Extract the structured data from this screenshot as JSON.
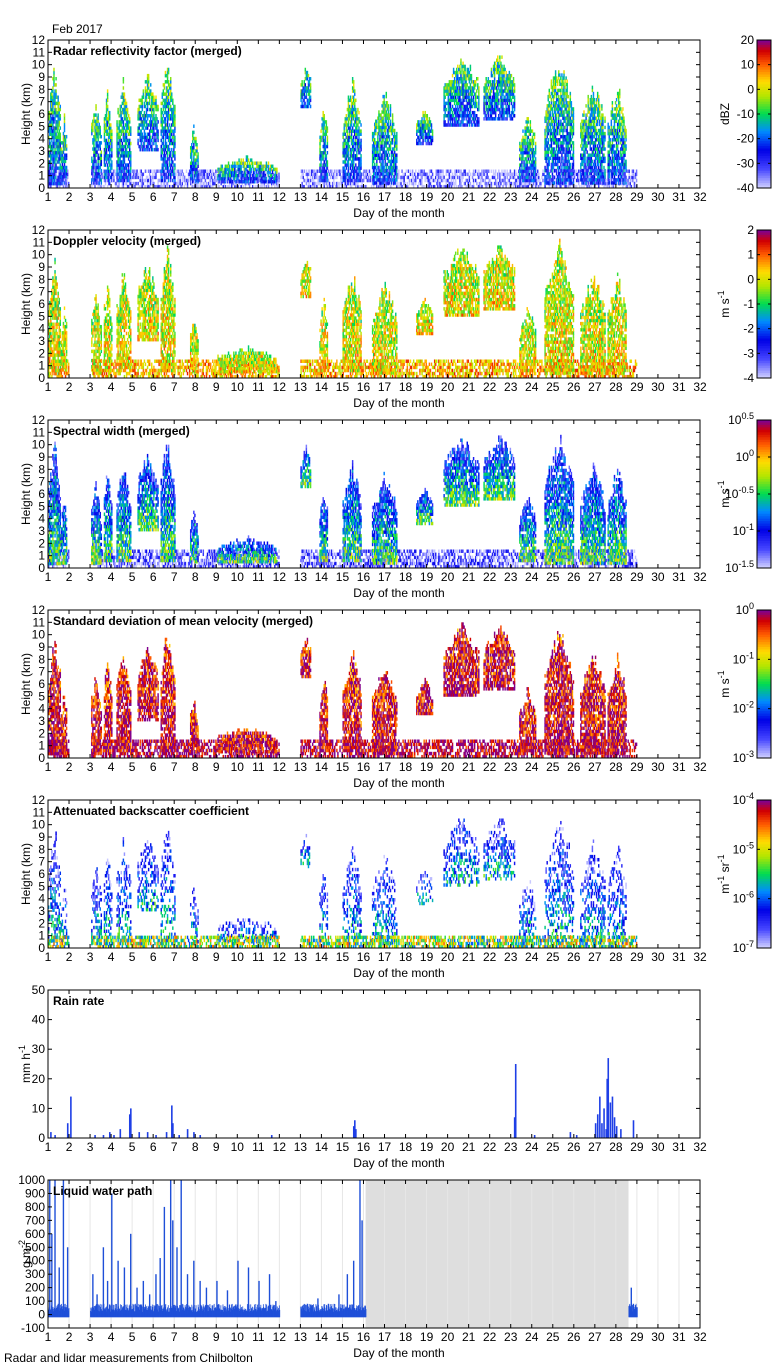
{
  "header": {
    "month_label": "Feb 2017"
  },
  "footer": {
    "source_label": "Radar and lidar measurements from Chilbolton"
  },
  "chart_data": [
    {
      "type": "heatmap",
      "title": "Radar reflectivity factor (merged)",
      "xlabel": "Day of the month",
      "ylabel": "Height (km)",
      "xlim": [
        1,
        32
      ],
      "ylim": [
        0,
        12
      ],
      "xticks": [
        1,
        2,
        3,
        4,
        5,
        6,
        7,
        8,
        9,
        10,
        11,
        12,
        13,
        14,
        15,
        16,
        17,
        18,
        19,
        20,
        21,
        22,
        23,
        24,
        25,
        26,
        27,
        28,
        29,
        30,
        31,
        32
      ],
      "yticks": [
        0,
        1,
        2,
        3,
        4,
        5,
        6,
        7,
        8,
        9,
        10,
        11,
        12
      ],
      "colorbar": {
        "label": "dBZ",
        "ticks": [
          "20",
          "10",
          "0",
          "-10",
          "-20",
          "-30",
          "-40"
        ],
        "range": [
          -40,
          20
        ],
        "scale": "linear"
      },
      "data_gaps": [
        [
          2.0,
          3.0
        ],
        [
          12.0,
          13.0
        ],
        [
          29.0,
          32.0
        ]
      ]
    },
    {
      "type": "heatmap",
      "title": "Doppler velocity (merged)",
      "xlabel": "Day of the month",
      "ylabel": "Height (km)",
      "xlim": [
        1,
        32
      ],
      "ylim": [
        0,
        12
      ],
      "xticks": [
        1,
        2,
        3,
        4,
        5,
        6,
        7,
        8,
        9,
        10,
        11,
        12,
        13,
        14,
        15,
        16,
        17,
        18,
        19,
        20,
        21,
        22,
        23,
        24,
        25,
        26,
        27,
        28,
        29,
        30,
        31,
        32
      ],
      "yticks": [
        0,
        1,
        2,
        3,
        4,
        5,
        6,
        7,
        8,
        9,
        10,
        11,
        12
      ],
      "colorbar": {
        "label_main": "m s",
        "label_sup": "-1",
        "ticks": [
          "2",
          "1",
          "0",
          "-1",
          "-2",
          "-3",
          "-4"
        ],
        "range": [
          -4,
          2
        ],
        "scale": "linear"
      },
      "data_gaps": [
        [
          2.0,
          3.0
        ],
        [
          12.0,
          13.0
        ],
        [
          29.0,
          32.0
        ]
      ]
    },
    {
      "type": "heatmap",
      "title": "Spectral width (merged)",
      "xlabel": "Day of the month",
      "ylabel": "Height (km)",
      "xlim": [
        1,
        32
      ],
      "ylim": [
        0,
        12
      ],
      "xticks": [
        1,
        2,
        3,
        4,
        5,
        6,
        7,
        8,
        9,
        10,
        11,
        12,
        13,
        14,
        15,
        16,
        17,
        18,
        19,
        20,
        21,
        22,
        23,
        24,
        25,
        26,
        27,
        28,
        29,
        30,
        31,
        32
      ],
      "yticks": [
        0,
        1,
        2,
        3,
        4,
        5,
        6,
        7,
        8,
        9,
        10,
        11,
        12
      ],
      "colorbar": {
        "label_main": "m s",
        "label_sup": "-1",
        "ticks": [
          "10^0.5",
          "10^0",
          "10^-0.5",
          "10^-1",
          "10^-1.5"
        ],
        "range": [
          -1.5,
          0.5
        ],
        "scale": "log"
      },
      "data_gaps": [
        [
          2.0,
          3.0
        ],
        [
          12.0,
          13.0
        ],
        [
          29.0,
          32.0
        ]
      ]
    },
    {
      "type": "heatmap",
      "title": "Standard deviation of mean velocity (merged)",
      "xlabel": "Day of the month",
      "ylabel": "Height (km)",
      "xlim": [
        1,
        32
      ],
      "ylim": [
        0,
        12
      ],
      "xticks": [
        1,
        2,
        3,
        4,
        5,
        6,
        7,
        8,
        9,
        10,
        11,
        12,
        13,
        14,
        15,
        16,
        17,
        18,
        19,
        20,
        21,
        22,
        23,
        24,
        25,
        26,
        27,
        28,
        29,
        30,
        31,
        32
      ],
      "yticks": [
        0,
        1,
        2,
        3,
        4,
        5,
        6,
        7,
        8,
        9,
        10,
        11,
        12
      ],
      "colorbar": {
        "label_main": "m s",
        "label_sup": "-1",
        "ticks": [
          "10^0",
          "10^-1",
          "10^-2",
          "10^-3"
        ],
        "range": [
          -3,
          0
        ],
        "scale": "log"
      },
      "data_gaps": [
        [
          2.0,
          3.0
        ],
        [
          12.0,
          13.0
        ],
        [
          29.0,
          32.0
        ]
      ]
    },
    {
      "type": "heatmap",
      "title": "Attenuated backscatter coefficient",
      "xlabel": "Day of the month",
      "ylabel": "Height (km)",
      "xlim": [
        1,
        32
      ],
      "ylim": [
        0,
        12
      ],
      "xticks": [
        1,
        2,
        3,
        4,
        5,
        6,
        7,
        8,
        9,
        10,
        11,
        12,
        13,
        14,
        15,
        16,
        17,
        18,
        19,
        20,
        21,
        22,
        23,
        24,
        25,
        26,
        27,
        28,
        29,
        30,
        31,
        32
      ],
      "yticks": [
        0,
        1,
        2,
        3,
        4,
        5,
        6,
        7,
        8,
        9,
        10,
        11,
        12
      ],
      "colorbar": {
        "label_main": "m",
        "label_sup": "-1",
        "label_main2": " sr",
        "label_sup2": "-1",
        "ticks": [
          "10^-4",
          "10^-5",
          "10^-6",
          "10^-7"
        ],
        "range": [
          -7,
          -4
        ],
        "scale": "log"
      },
      "data_gaps": [
        [
          2.0,
          3.0
        ],
        [
          12.0,
          13.0
        ],
        [
          29.0,
          32.0
        ]
      ]
    },
    {
      "type": "bar",
      "title": "Rain rate",
      "xlabel": "Day of the month",
      "ylabel_main": "mm h",
      "ylabel_sup": "-1",
      "xlim": [
        1,
        32
      ],
      "ylim": [
        0,
        50
      ],
      "xticks": [
        1,
        2,
        3,
        4,
        5,
        6,
        7,
        8,
        9,
        10,
        11,
        12,
        13,
        14,
        15,
        16,
        17,
        18,
        19,
        20,
        21,
        22,
        23,
        24,
        25,
        26,
        27,
        28,
        29,
        30,
        31,
        32
      ],
      "yticks": [
        0,
        10,
        20,
        30,
        40,
        50
      ],
      "x": [
        1.1,
        1.3,
        1.9,
        2.05,
        3.2,
        3.6,
        3.9,
        4.1,
        4.4,
        4.85,
        4.9,
        5.3,
        5.7,
        6.1,
        6.6,
        6.85,
        6.9,
        7.2,
        7.6,
        7.9,
        8.2,
        11.6,
        15.5,
        15.55,
        15.6,
        23.15,
        23.2,
        24.1,
        25.8,
        26.1,
        27.0,
        27.1,
        27.2,
        27.3,
        27.4,
        27.5,
        27.55,
        27.6,
        27.7,
        27.8,
        27.9,
        28.0,
        28.2,
        28.8
      ],
      "values": [
        2,
        1,
        5,
        14,
        1,
        1,
        2,
        1,
        3,
        8,
        10,
        2,
        2,
        1,
        2,
        11,
        5,
        1,
        3,
        2,
        1,
        1,
        4,
        6,
        3,
        7,
        25,
        1,
        2,
        1,
        5,
        8,
        14,
        5,
        10,
        3,
        20,
        27,
        12,
        14,
        7,
        4,
        3,
        6
      ]
    },
    {
      "type": "bar",
      "title": "Liquid water path",
      "xlabel": "Day of the month",
      "ylabel_main": "g m",
      "ylabel_sup": "-2",
      "xlim": [
        1,
        32
      ],
      "ylim": [
        -100,
        1000
      ],
      "xticks": [
        1,
        2,
        3,
        4,
        5,
        6,
        7,
        8,
        9,
        10,
        11,
        12,
        13,
        14,
        15,
        16,
        17,
        18,
        19,
        20,
        21,
        22,
        23,
        24,
        25,
        26,
        27,
        28,
        29,
        30,
        31,
        32
      ],
      "yticks": [
        -100,
        0,
        100,
        200,
        300,
        400,
        500,
        600,
        700,
        800,
        900,
        1000
      ],
      "segments": [
        [
          1.0,
          2.0
        ],
        [
          3.0,
          12.0
        ],
        [
          13.0,
          16.1
        ],
        [
          28.6,
          29.0
        ]
      ],
      "no_data_region": [
        16.1,
        28.6
      ],
      "x": [
        1.05,
        1.15,
        1.3,
        1.5,
        1.7,
        1.9,
        3.1,
        3.3,
        3.6,
        3.8,
        4.0,
        4.3,
        4.6,
        4.9,
        5.2,
        5.5,
        5.8,
        6.1,
        6.3,
        6.5,
        6.8,
        6.9,
        7.1,
        7.3,
        7.6,
        7.9,
        8.2,
        8.5,
        9.0,
        9.5,
        10.0,
        10.5,
        11.0,
        11.5,
        11.8,
        13.3,
        13.8,
        14.3,
        14.8,
        15.2,
        15.5,
        15.8,
        15.9,
        28.7,
        28.8
      ],
      "values": [
        1000,
        600,
        1000,
        350,
        1000,
        500,
        300,
        150,
        500,
        250,
        900,
        400,
        350,
        600,
        200,
        250,
        150,
        300,
        420,
        800,
        1000,
        700,
        500,
        1000,
        300,
        400,
        250,
        200,
        250,
        180,
        400,
        350,
        250,
        300,
        100,
        80,
        120,
        80,
        150,
        300,
        400,
        1000,
        700,
        200,
        80
      ]
    }
  ]
}
